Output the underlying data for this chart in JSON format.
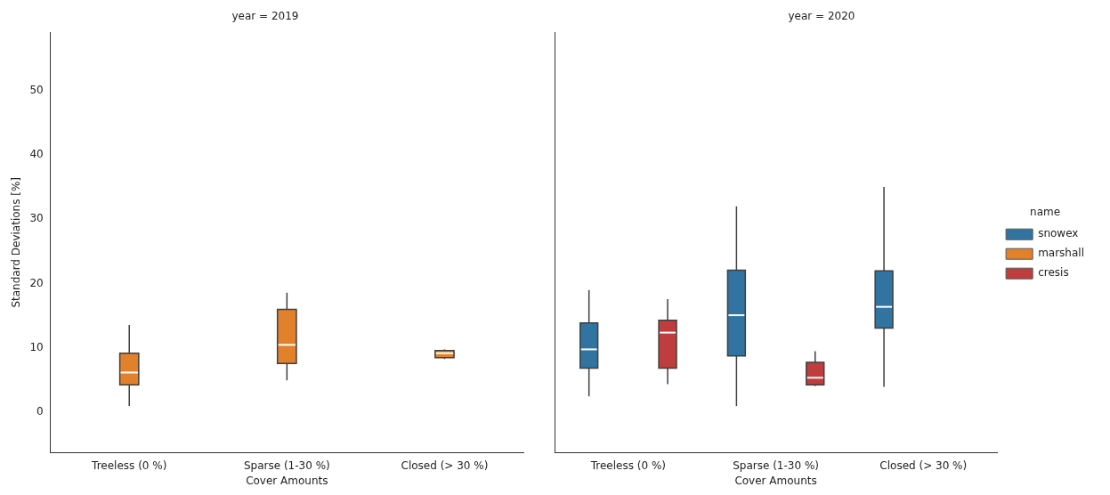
{
  "chart_data": [
    {
      "type": "box",
      "title": "year = 2019",
      "xlabel": "Cover Amounts",
      "ylabel": "Standard Deviations [%]",
      "categories": [
        "Treeless (0 %)",
        "Sparse (1-30 %)",
        "Closed (> 30 %)"
      ],
      "ylim": [
        -6.2,
        59
      ],
      "yticks": [
        0,
        10,
        20,
        30,
        40,
        50
      ],
      "grid": false,
      "legend": false,
      "series": [
        {
          "color": "#3274a1",
          "boxes": [
            null,
            null,
            null
          ]
        },
        {
          "color": "#e1812c",
          "boxes": [
            {
              "low": 1.0,
              "q1": 4.3,
              "median": 6.2,
              "q3": 9.2,
              "high": 13.6
            },
            {
              "low": 5.0,
              "q1": 7.6,
              "median": 10.5,
              "q3": 16.0,
              "high": 18.6
            },
            {
              "low": 8.3,
              "q1": 8.5,
              "median": 9.2,
              "q3": 9.6,
              "high": 9.8
            }
          ]
        },
        {
          "color": "#c03d3e",
          "boxes": [
            null,
            null,
            null
          ]
        }
      ]
    },
    {
      "type": "box",
      "title": "year = 2020",
      "xlabel": "Cover Amounts",
      "categories": [
        "Treeless (0 %)",
        "Sparse (1-30 %)",
        "Closed (> 30 %)"
      ],
      "ylim": [
        -6.2,
        59
      ],
      "yticks": [
        0,
        10,
        20,
        30,
        40,
        50
      ],
      "grid": false,
      "legend": "right",
      "legend_title": "name",
      "tick_labels": "x",
      "series": [
        {
          "name": "snowex",
          "color": "#3274a1",
          "boxes": [
            {
              "low": 2.5,
              "q1": 6.9,
              "median": 9.8,
              "q3": 13.9,
              "high": 19.0
            },
            {
              "low": 1.0,
              "q1": 8.8,
              "median": 15.1,
              "q3": 22.1,
              "high": 32.0
            },
            {
              "low": 4.0,
              "q1": 13.1,
              "median": 16.4,
              "q3": 22.0,
              "high": 35.0
            }
          ]
        },
        {
          "name": "marshall",
          "color": "#e1812c",
          "boxes": [
            null,
            null,
            null
          ]
        },
        {
          "name": "cresis",
          "color": "#c03d3e",
          "boxes": [
            {
              "low": 4.4,
              "q1": 6.9,
              "median": 12.4,
              "q3": 14.3,
              "high": 17.6
            },
            {
              "low": 4.1,
              "q1": 4.3,
              "median": 5.4,
              "q3": 7.8,
              "high": 9.5
            },
            null
          ]
        }
      ]
    }
  ]
}
